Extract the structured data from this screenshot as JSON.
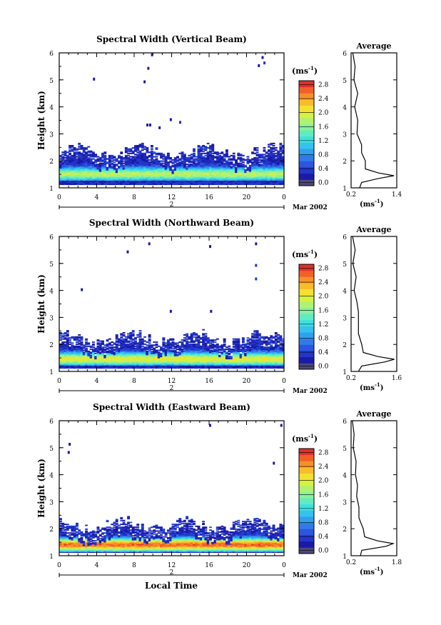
{
  "figure": {
    "xlabel_bottom": "Local Time",
    "date_label": "Mar 2002",
    "day_label": "2",
    "colorbar_unit": "(ms",
    "unit_sup": "-1",
    "unit_close": ")",
    "avg_title": "Average"
  },
  "colors": {
    "scale": [
      "#4a4a7a",
      "#1a1aa6",
      "#2236c8",
      "#2d55e0",
      "#2f7be8",
      "#2fa0ee",
      "#35c2ee",
      "#3ee0e0",
      "#60ecc0",
      "#8af09a",
      "#b0f270",
      "#d8f040",
      "#f4e030",
      "#f8bc28",
      "#f89028",
      "#f06028",
      "#e03028"
    ]
  },
  "chart_data": [
    {
      "type": "heatmap",
      "title": "Spectral Width (Vertical Beam)",
      "ylabel": "Height (km)",
      "ylim": [
        1,
        6
      ],
      "xlim": [
        0,
        24
      ],
      "yticks": [
        "1",
        "2",
        "3",
        "4",
        "5",
        "6"
      ],
      "xticks": [
        "0",
        "4",
        "8",
        "12",
        "16",
        "20",
        "0"
      ],
      "colorbar": {
        "ticks": [
          "0.0",
          "0.4",
          "0.8",
          "1.2",
          "1.6",
          "2.0",
          "2.4",
          "2.8"
        ],
        "range": [
          0,
          3.0
        ]
      },
      "layer_top_km": 2.35,
      "core_km": 1.5,
      "peak_value": 1.6,
      "isolated": [
        [
          3.6,
          5.0,
          0.3
        ],
        [
          9.8,
          5.9,
          0.3
        ],
        [
          9.4,
          5.4,
          0.3
        ],
        [
          9.0,
          4.9,
          0.3
        ],
        [
          9.3,
          3.3,
          0.3
        ],
        [
          9.6,
          3.3,
          0.3
        ],
        [
          10.6,
          3.2,
          0.3
        ],
        [
          11.8,
          3.5,
          0.3
        ],
        [
          12.8,
          3.4,
          0.4
        ],
        [
          21.6,
          5.8,
          0.3
        ],
        [
          21.8,
          5.6,
          0.4
        ],
        [
          21.2,
          5.5,
          0.3
        ]
      ],
      "average": {
        "title": "Average",
        "xticks": [
          "0.2",
          "1.4"
        ],
        "xlim": [
          0.2,
          1.4
        ],
        "xlabel": "(ms",
        "profile": [
          [
            1.0,
            0.4
          ],
          [
            1.2,
            0.5
          ],
          [
            1.35,
            0.9
          ],
          [
            1.45,
            1.35
          ],
          [
            1.55,
            0.9
          ],
          [
            1.7,
            0.6
          ],
          [
            2.0,
            0.55
          ],
          [
            2.3,
            0.5
          ],
          [
            2.6,
            0.45
          ],
          [
            3.0,
            0.38
          ],
          [
            3.5,
            0.35
          ],
          [
            4.0,
            0.32
          ],
          [
            4.5,
            0.35
          ],
          [
            5.0,
            0.3
          ],
          [
            5.5,
            0.28
          ],
          [
            6.0,
            0.27
          ]
        ]
      }
    },
    {
      "type": "heatmap",
      "title": "Spectral Width (Northward Beam)",
      "ylabel": "Height (km)",
      "ylim": [
        1,
        6
      ],
      "xlim": [
        0,
        24
      ],
      "yticks": [
        "1",
        "2",
        "3",
        "4",
        "5",
        "6"
      ],
      "xticks": [
        "0",
        "4",
        "8",
        "12",
        "16",
        "20",
        "0"
      ],
      "colorbar": {
        "ticks": [
          "0.0",
          "0.4",
          "0.8",
          "1.2",
          "1.6",
          "2.0",
          "2.4",
          "2.8"
        ],
        "range": [
          0,
          3.0
        ]
      },
      "layer_top_km": 2.25,
      "core_km": 1.45,
      "peak_value": 1.8,
      "isolated": [
        [
          2.3,
          4.0,
          0.3
        ],
        [
          7.2,
          5.4,
          0.3
        ],
        [
          9.5,
          5.7,
          0.3
        ],
        [
          11.8,
          3.2,
          0.3
        ],
        [
          16.0,
          5.6,
          0.3
        ],
        [
          16.1,
          3.2,
          0.3
        ],
        [
          20.9,
          5.7,
          0.3
        ],
        [
          20.9,
          4.9,
          0.4
        ],
        [
          20.9,
          4.4,
          0.4
        ]
      ],
      "average": {
        "title": "Average",
        "xticks": [
          "0.2",
          "1.6"
        ],
        "xlim": [
          0.2,
          1.6
        ],
        "xlabel": "(ms",
        "profile": [
          [
            1.0,
            0.4
          ],
          [
            1.2,
            0.55
          ],
          [
            1.35,
            1.2
          ],
          [
            1.45,
            1.55
          ],
          [
            1.55,
            1.0
          ],
          [
            1.7,
            0.6
          ],
          [
            2.0,
            0.5
          ],
          [
            2.4,
            0.45
          ],
          [
            2.8,
            0.4
          ],
          [
            3.2,
            0.45
          ],
          [
            3.6,
            0.35
          ],
          [
            4.0,
            0.32
          ],
          [
            4.5,
            0.33
          ],
          [
            5.0,
            0.28
          ],
          [
            5.5,
            0.3
          ],
          [
            6.0,
            0.27
          ]
        ]
      }
    },
    {
      "type": "heatmap",
      "title": "Spectral Width (Eastward Beam)",
      "ylabel": "Height (km)",
      "ylim": [
        1,
        6
      ],
      "xlim": [
        0,
        24
      ],
      "yticks": [
        "1",
        "2",
        "3",
        "4",
        "5",
        "6"
      ],
      "xticks": [
        "0",
        "4",
        "8",
        "12",
        "16",
        "20",
        "0"
      ],
      "colorbar": {
        "ticks": [
          "0.0",
          "0.4",
          "0.8",
          "1.2",
          "1.6",
          "2.0",
          "2.4",
          "2.8"
        ],
        "range": [
          0,
          3.0
        ]
      },
      "layer_top_km": 2.15,
      "core_km": 1.4,
      "peak_value": 2.4,
      "isolated": [
        [
          1.0,
          5.1,
          0.3
        ],
        [
          0.9,
          4.8,
          0.3
        ],
        [
          16.0,
          5.8,
          0.3
        ],
        [
          22.8,
          4.4,
          0.3
        ],
        [
          23.6,
          5.8,
          0.3
        ]
      ],
      "average": {
        "title": "Average",
        "xticks": [
          "0.2",
          "1.8"
        ],
        "xlim": [
          0.2,
          1.8
        ],
        "xlabel": "(ms",
        "profile": [
          [
            1.0,
            0.5
          ],
          [
            1.2,
            0.6
          ],
          [
            1.35,
            1.4
          ],
          [
            1.45,
            1.7
          ],
          [
            1.55,
            1.1
          ],
          [
            1.7,
            0.7
          ],
          [
            2.0,
            0.6
          ],
          [
            2.4,
            0.5
          ],
          [
            2.8,
            0.45
          ],
          [
            3.2,
            0.42
          ],
          [
            3.6,
            0.4
          ],
          [
            4.0,
            0.38
          ],
          [
            4.5,
            0.35
          ],
          [
            5.0,
            0.3
          ],
          [
            5.5,
            0.28
          ],
          [
            6.0,
            0.27
          ]
        ]
      }
    }
  ]
}
